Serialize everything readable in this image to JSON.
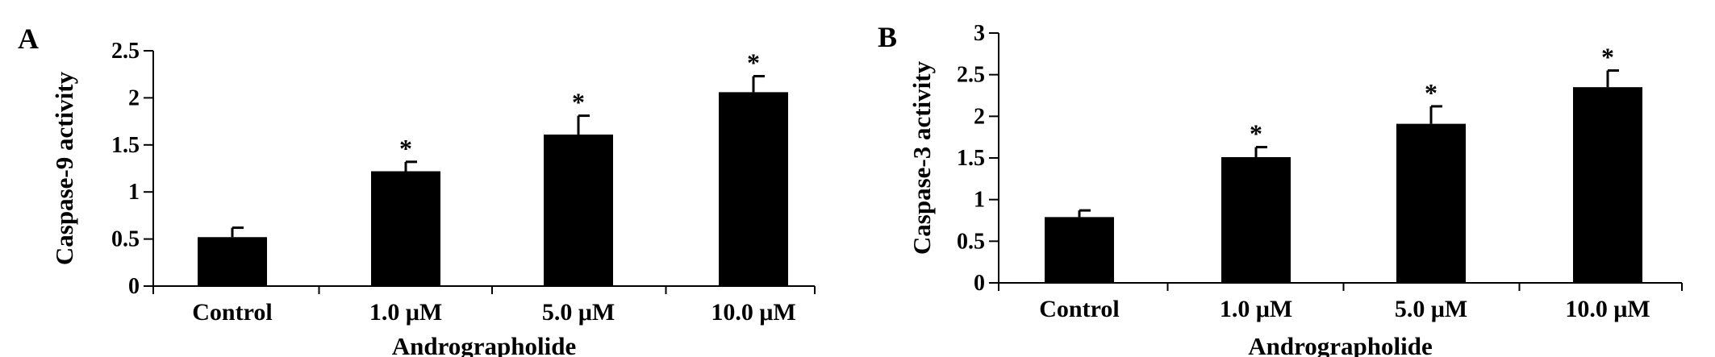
{
  "chart_data": [
    {
      "type": "bar",
      "panel_label": "A",
      "categories": [
        "Control",
        "1.0 μM",
        "5.0 μM",
        "10.0 μM"
      ],
      "values": [
        0.52,
        1.22,
        1.61,
        2.06
      ],
      "errors": [
        0.1,
        0.1,
        0.2,
        0.17
      ],
      "significance": [
        "",
        "*",
        "*",
        "*"
      ],
      "xlabel": "Andrographolide",
      "ylabel": "Caspase-9 activity",
      "ylim": [
        0,
        2.5
      ],
      "yticks": [
        0,
        0.5,
        1,
        1.5,
        2,
        2.5
      ],
      "ytick_labels": [
        "0",
        "0.5",
        "1",
        "1.5",
        "2",
        "2.5"
      ],
      "bar_color": "#000000",
      "grid": false,
      "legend": "none"
    },
    {
      "type": "bar",
      "panel_label": "B",
      "categories": [
        "Control",
        "1.0 μM",
        "5.0 μM",
        "10.0 μM"
      ],
      "values": [
        0.79,
        1.51,
        1.91,
        2.35
      ],
      "errors": [
        0.08,
        0.12,
        0.21,
        0.2
      ],
      "significance": [
        "",
        "*",
        "*",
        "*"
      ],
      "xlabel": "Andrographolide",
      "ylabel": "Caspase-3 activity",
      "ylim": [
        0,
        3
      ],
      "yticks": [
        0,
        0.5,
        1,
        1.5,
        2,
        2.5,
        3
      ],
      "ytick_labels": [
        "0",
        "0.5",
        "1",
        "1.5",
        "2",
        "2.5",
        "3"
      ],
      "bar_color": "#000000",
      "grid": false,
      "legend": "none"
    }
  ]
}
